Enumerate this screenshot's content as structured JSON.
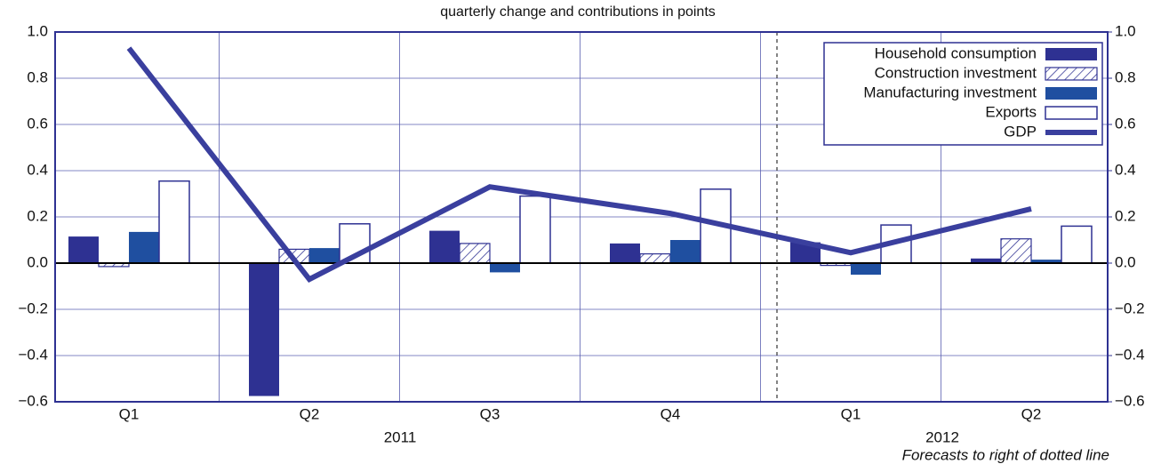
{
  "chart_data": {
    "type": "bar",
    "title": "quarterly change and contributions in points",
    "categories": [
      "Q1",
      "Q2",
      "Q3",
      "Q4",
      "Q1",
      "Q2"
    ],
    "year_labels": [
      "2011",
      "2012"
    ],
    "note": "Forecasts to right of dotted line",
    "series": [
      {
        "name": "Household consumption",
        "type": "bar",
        "style": "solid",
        "color": "#2e3192",
        "values": [
          0.115,
          -0.575,
          0.14,
          0.085,
          0.09,
          0.02
        ]
      },
      {
        "name": "Construction investment",
        "type": "bar",
        "style": "hatched",
        "color": "#2e3192",
        "values": [
          -0.015,
          0.06,
          0.085,
          0.04,
          -0.01,
          0.105
        ]
      },
      {
        "name": "Manufacturing investment",
        "type": "bar",
        "style": "solid",
        "color": "#1f4fa0",
        "values": [
          0.135,
          0.065,
          -0.04,
          0.1,
          -0.05,
          0.015
        ]
      },
      {
        "name": "Exports",
        "type": "bar",
        "style": "outline",
        "color": "#2e3192",
        "values": [
          0.355,
          0.17,
          0.29,
          0.32,
          0.165,
          0.16
        ]
      },
      {
        "name": "GDP",
        "type": "line",
        "color": "#3a3f9e",
        "values": [
          0.93,
          -0.07,
          0.33,
          0.215,
          0.045,
          0.235
        ]
      }
    ],
    "ylim": [
      -0.6,
      1.0
    ],
    "yticks": [
      {
        "value": -0.6,
        "label": "−0.6"
      },
      {
        "value": -0.4,
        "label": "−0.4"
      },
      {
        "value": -0.2,
        "label": "−0.2"
      },
      {
        "value": 0,
        "label": "0.0"
      },
      {
        "value": 0.2,
        "label": "0.2"
      },
      {
        "value": 0.4,
        "label": "0.4"
      },
      {
        "value": 0.6,
        "label": "0.6"
      },
      {
        "value": 0.8,
        "label": "0.8"
      },
      {
        "value": 1.0,
        "label": "1.0"
      }
    ],
    "y2lim": [
      -0.6,
      1.0
    ],
    "y2ticks": [
      {
        "value": -0.6,
        "label": "−0.6"
      },
      {
        "value": -0.4,
        "label": "−0.4"
      },
      {
        "value": -0.2,
        "label": "−0.2"
      },
      {
        "value": 0,
        "label": "0.0"
      },
      {
        "value": 0.2,
        "label": "0.2"
      },
      {
        "value": 0.4,
        "label": "0.4"
      },
      {
        "value": 0.6,
        "label": "0.6"
      },
      {
        "value": 0.8,
        "label": "0.8"
      },
      {
        "value": 1.0,
        "label": "1.0"
      }
    ],
    "grid": true,
    "legend": "top-right"
  }
}
